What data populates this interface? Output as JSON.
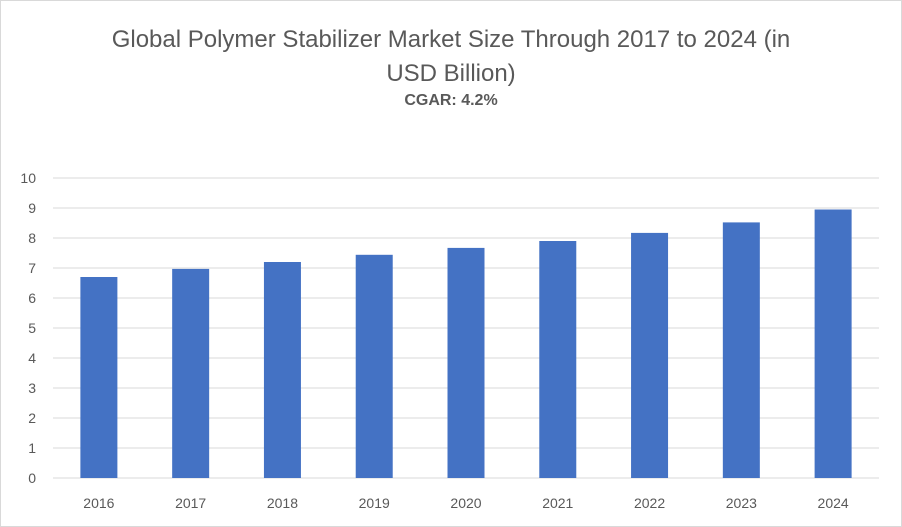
{
  "chart_data": {
    "type": "bar",
    "title": "Global Polymer Stabilizer Market Size Through 2017 to 2024 (in USD Billion)",
    "subtitle": "CGAR: 4.2%",
    "categories": [
      "2016",
      "2017",
      "2018",
      "2019",
      "2020",
      "2021",
      "2022",
      "2023",
      "2024"
    ],
    "values": [
      6.7,
      6.97,
      7.2,
      7.44,
      7.67,
      7.9,
      8.17,
      8.52,
      8.95
    ],
    "xlabel": "",
    "ylabel": "",
    "ylim": [
      0,
      10
    ],
    "yticks": [
      "0",
      "1",
      "2",
      "3",
      "4",
      "5",
      "6",
      "7",
      "8",
      "9",
      "10"
    ],
    "grid": true,
    "legend": "none",
    "colors": {
      "bar": "#4472c4",
      "grid": "#d9d9d9",
      "text": "#595959"
    }
  }
}
